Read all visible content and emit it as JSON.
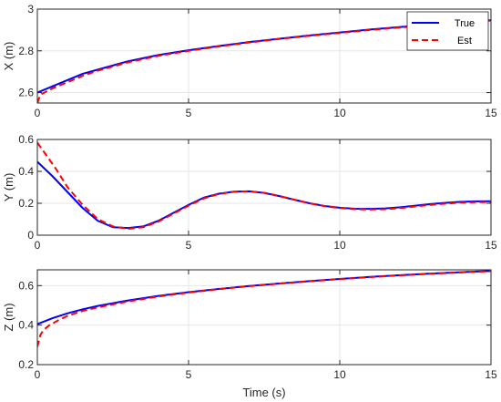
{
  "colors": {
    "true": "#0000ff",
    "est": "#ff0000",
    "grid": "#e6e6e6",
    "axis": "#262626"
  },
  "xlabel": "Time (s)",
  "legend": {
    "entries": [
      "True",
      "Est"
    ],
    "placement": "top-right (upper panel)"
  },
  "chart_data": [
    {
      "type": "line",
      "ylabel": "X (m)",
      "xlim": [
        0,
        15
      ],
      "ylim": [
        2.55,
        3
      ],
      "xticks": [
        "0",
        "5",
        "10",
        "15"
      ],
      "yticks": [
        "2.6",
        "2.8",
        "3"
      ],
      "grid": true,
      "series": [
        {
          "name": "True",
          "x": [
            0,
            0.5,
            1,
            1.5,
            2,
            3,
            4,
            5,
            6,
            7,
            8,
            9,
            10,
            11,
            12,
            13,
            14,
            15
          ],
          "y": [
            2.6,
            2.63,
            2.66,
            2.69,
            2.71,
            2.75,
            2.78,
            2.803,
            2.823,
            2.842,
            2.858,
            2.874,
            2.888,
            2.902,
            2.914,
            2.926,
            2.937,
            2.947
          ]
        },
        {
          "name": "Est",
          "x": [
            0,
            0.1,
            0.3,
            0.5,
            1,
            1.5,
            2,
            3,
            4,
            5,
            6,
            7,
            8,
            9,
            10,
            11,
            12,
            13,
            14,
            15
          ],
          "y": [
            2.55,
            2.59,
            2.605,
            2.62,
            2.65,
            2.68,
            2.705,
            2.745,
            2.776,
            2.8,
            2.821,
            2.84,
            2.857,
            2.872,
            2.886,
            2.9,
            2.912,
            2.924,
            2.935,
            2.945
          ]
        }
      ]
    },
    {
      "type": "line",
      "ylabel": "Y (m)",
      "xlim": [
        0,
        15
      ],
      "ylim": [
        0,
        0.6
      ],
      "xticks": [
        "0",
        "5",
        "10",
        "15"
      ],
      "yticks": [
        "0",
        "0.2",
        "0.4",
        "0.6"
      ],
      "grid": true,
      "series": [
        {
          "name": "True",
          "x": [
            0,
            0.5,
            1,
            1.5,
            2,
            2.5,
            3,
            3.5,
            4,
            4.5,
            5,
            5.5,
            6,
            6.5,
            7,
            7.5,
            8,
            8.5,
            9,
            9.5,
            10,
            10.5,
            11,
            11.5,
            12,
            12.5,
            13,
            13.5,
            14,
            14.5,
            15
          ],
          "y": [
            0.46,
            0.37,
            0.27,
            0.17,
            0.09,
            0.05,
            0.045,
            0.055,
            0.09,
            0.14,
            0.19,
            0.235,
            0.26,
            0.273,
            0.275,
            0.265,
            0.245,
            0.222,
            0.2,
            0.183,
            0.172,
            0.166,
            0.165,
            0.168,
            0.175,
            0.185,
            0.195,
            0.203,
            0.209,
            0.212,
            0.213
          ]
        },
        {
          "name": "Est",
          "x": [
            0,
            0.3,
            0.6,
            1,
            1.5,
            2,
            2.5,
            3,
            3.5,
            4,
            4.5,
            5,
            5.5,
            6,
            6.5,
            7,
            7.5,
            8,
            8.5,
            9,
            9.5,
            10,
            10.5,
            11,
            11.5,
            12,
            12.5,
            13,
            13.5,
            14,
            14.5,
            15
          ],
          "y": [
            0.58,
            0.5,
            0.42,
            0.3,
            0.19,
            0.1,
            0.055,
            0.04,
            0.05,
            0.085,
            0.135,
            0.185,
            0.23,
            0.258,
            0.272,
            0.275,
            0.266,
            0.246,
            0.222,
            0.2,
            0.182,
            0.17,
            0.163,
            0.161,
            0.163,
            0.17,
            0.18,
            0.19,
            0.198,
            0.204,
            0.207,
            0.208
          ]
        }
      ]
    },
    {
      "type": "line",
      "ylabel": "Z (m)",
      "xlim": [
        0,
        15
      ],
      "ylim": [
        0.2,
        0.68
      ],
      "xticks": [
        "0",
        "5",
        "10",
        "15"
      ],
      "yticks": [
        "0.2",
        "0.4",
        "0.6"
      ],
      "grid": true,
      "series": [
        {
          "name": "True",
          "x": [
            0,
            0.5,
            1,
            1.5,
            2,
            3,
            4,
            5,
            6,
            7,
            8,
            9,
            10,
            11,
            12,
            13,
            14,
            15
          ],
          "y": [
            0.405,
            0.435,
            0.46,
            0.48,
            0.497,
            0.525,
            0.548,
            0.567,
            0.583,
            0.598,
            0.611,
            0.623,
            0.634,
            0.644,
            0.653,
            0.661,
            0.668,
            0.674
          ]
        },
        {
          "name": "Est",
          "x": [
            0,
            0.1,
            0.2,
            0.4,
            0.7,
            1,
            1.5,
            2,
            3,
            4,
            5,
            6,
            7,
            8,
            9,
            10,
            11,
            12,
            13,
            14,
            15
          ],
          "y": [
            0.29,
            0.35,
            0.375,
            0.4,
            0.425,
            0.447,
            0.472,
            0.49,
            0.52,
            0.545,
            0.565,
            0.582,
            0.597,
            0.61,
            0.622,
            0.633,
            0.643,
            0.652,
            0.66,
            0.667,
            0.673
          ]
        }
      ]
    }
  ]
}
